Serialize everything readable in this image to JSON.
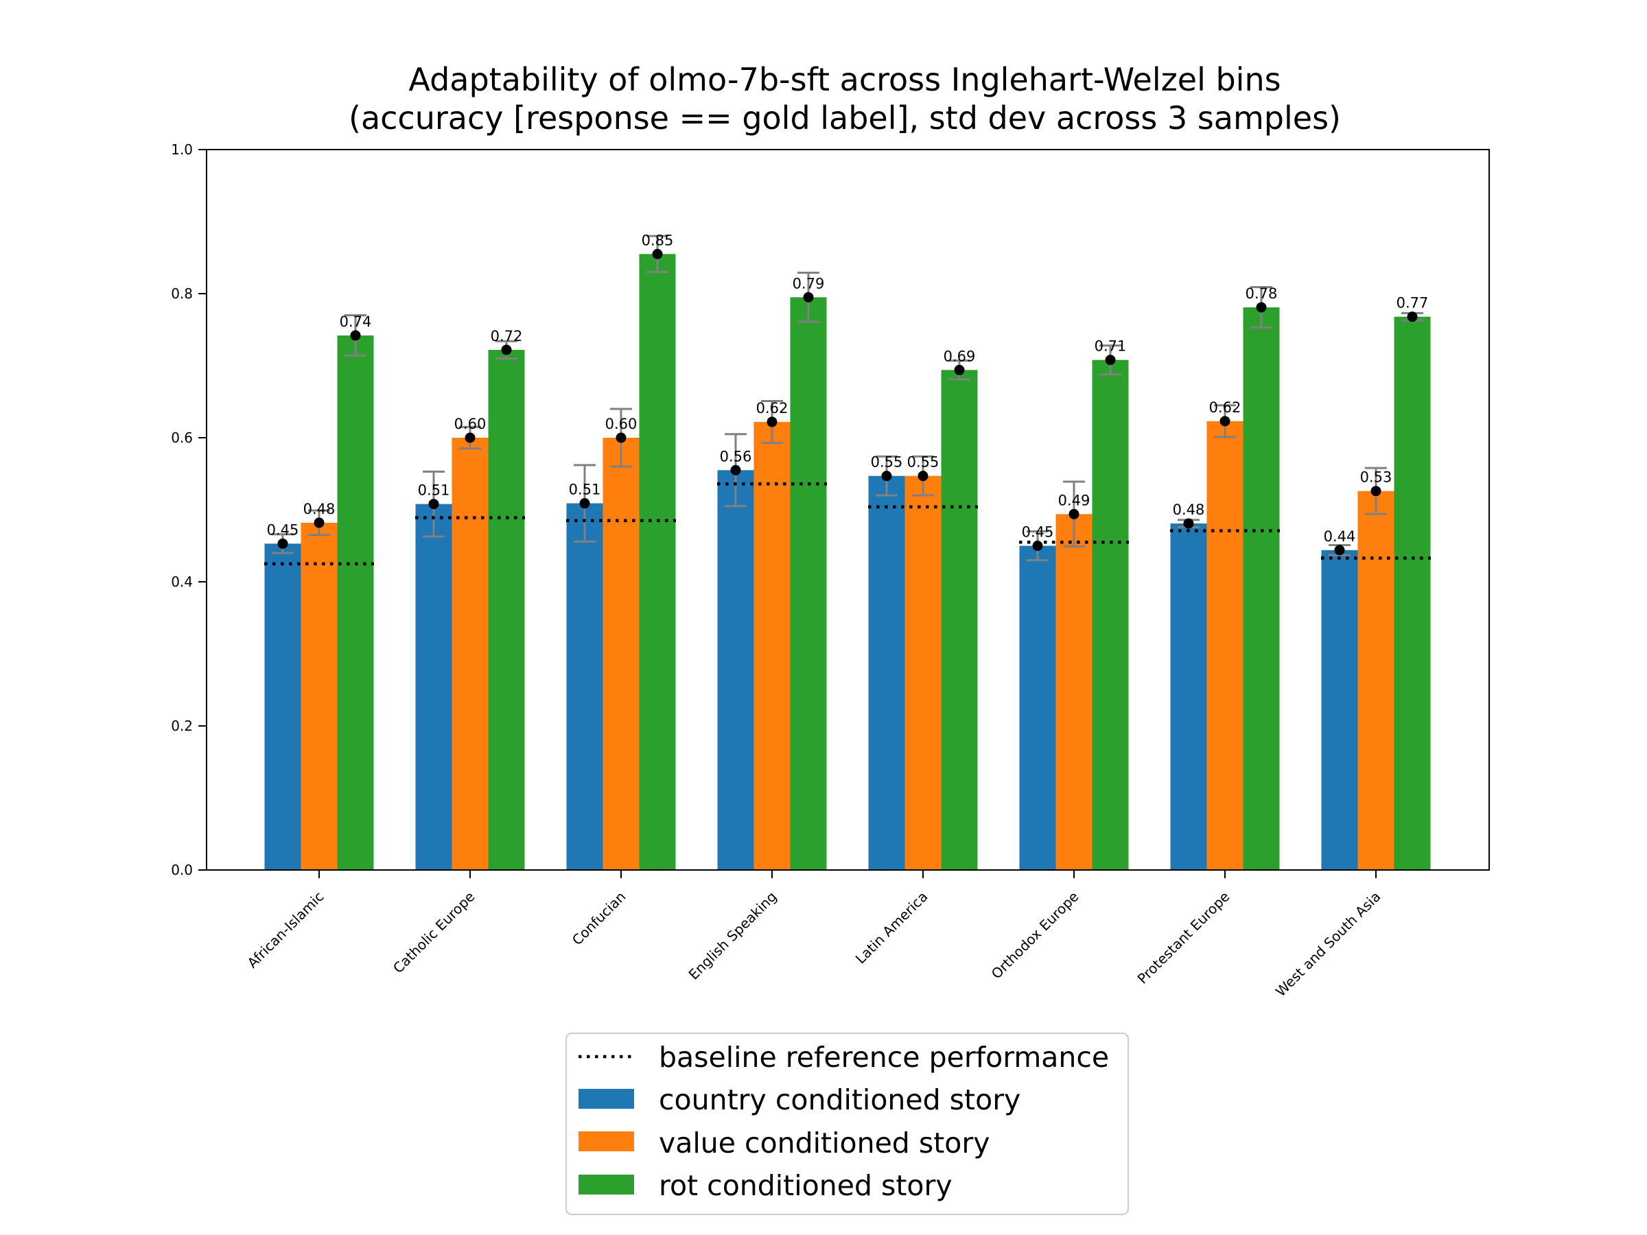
{
  "chart_data": {
    "type": "bar",
    "title": "Adaptability of olmo-7b-sft across Inglehart-Welzel bins",
    "subtitle": "(accuracy [response == gold label], std dev across 3 samples)",
    "xlabel": "",
    "ylabel": "",
    "ylim": [
      0,
      1.0
    ],
    "yticks": [
      "0.0",
      "0.2",
      "0.4",
      "0.6",
      "0.8",
      "1.0"
    ],
    "grid": false,
    "legend_position": "bottom-center",
    "categories": [
      "African-Islamic",
      "Catholic Europe",
      "Confucian",
      "English Speaking",
      "Latin America",
      "Orthodox Europe",
      "Protestant Europe",
      "West and South Asia"
    ],
    "series": [
      {
        "name": "country conditioned story",
        "color": "#1f77b4",
        "values": [
          0.453,
          0.508,
          0.509,
          0.555,
          0.547,
          0.45,
          0.481,
          0.444
        ],
        "labels": [
          "0.45",
          "0.51",
          "0.51",
          "0.56",
          "0.55",
          "0.45",
          "0.48",
          "0.44"
        ],
        "std": [
          0.013,
          0.045,
          0.053,
          0.05,
          0.027,
          0.02,
          0.005,
          0.007
        ]
      },
      {
        "name": "value conditioned story",
        "color": "#ff7f0e",
        "values": [
          0.482,
          0.6,
          0.6,
          0.622,
          0.547,
          0.494,
          0.623,
          0.526
        ],
        "labels": [
          "0.48",
          "0.60",
          "0.60",
          "0.62",
          "0.55",
          "0.49",
          "0.62",
          "0.53"
        ],
        "std": [
          0.017,
          0.015,
          0.04,
          0.029,
          0.027,
          0.045,
          0.022,
          0.032
        ]
      },
      {
        "name": "rot conditioned story",
        "color": "#2ca02c",
        "values": [
          0.742,
          0.722,
          0.855,
          0.795,
          0.694,
          0.708,
          0.781,
          0.768
        ],
        "labels": [
          "0.74",
          "0.72",
          "0.85",
          "0.79",
          "0.69",
          "0.71",
          "0.78",
          "0.77"
        ],
        "std": [
          0.028,
          0.012,
          0.025,
          0.034,
          0.013,
          0.02,
          0.028,
          0.005
        ]
      }
    ],
    "baseline": {
      "name": "baseline reference performance",
      "color": "#000000",
      "values": [
        0.425,
        0.489,
        0.485,
        0.536,
        0.504,
        0.455,
        0.471,
        0.433
      ]
    }
  }
}
